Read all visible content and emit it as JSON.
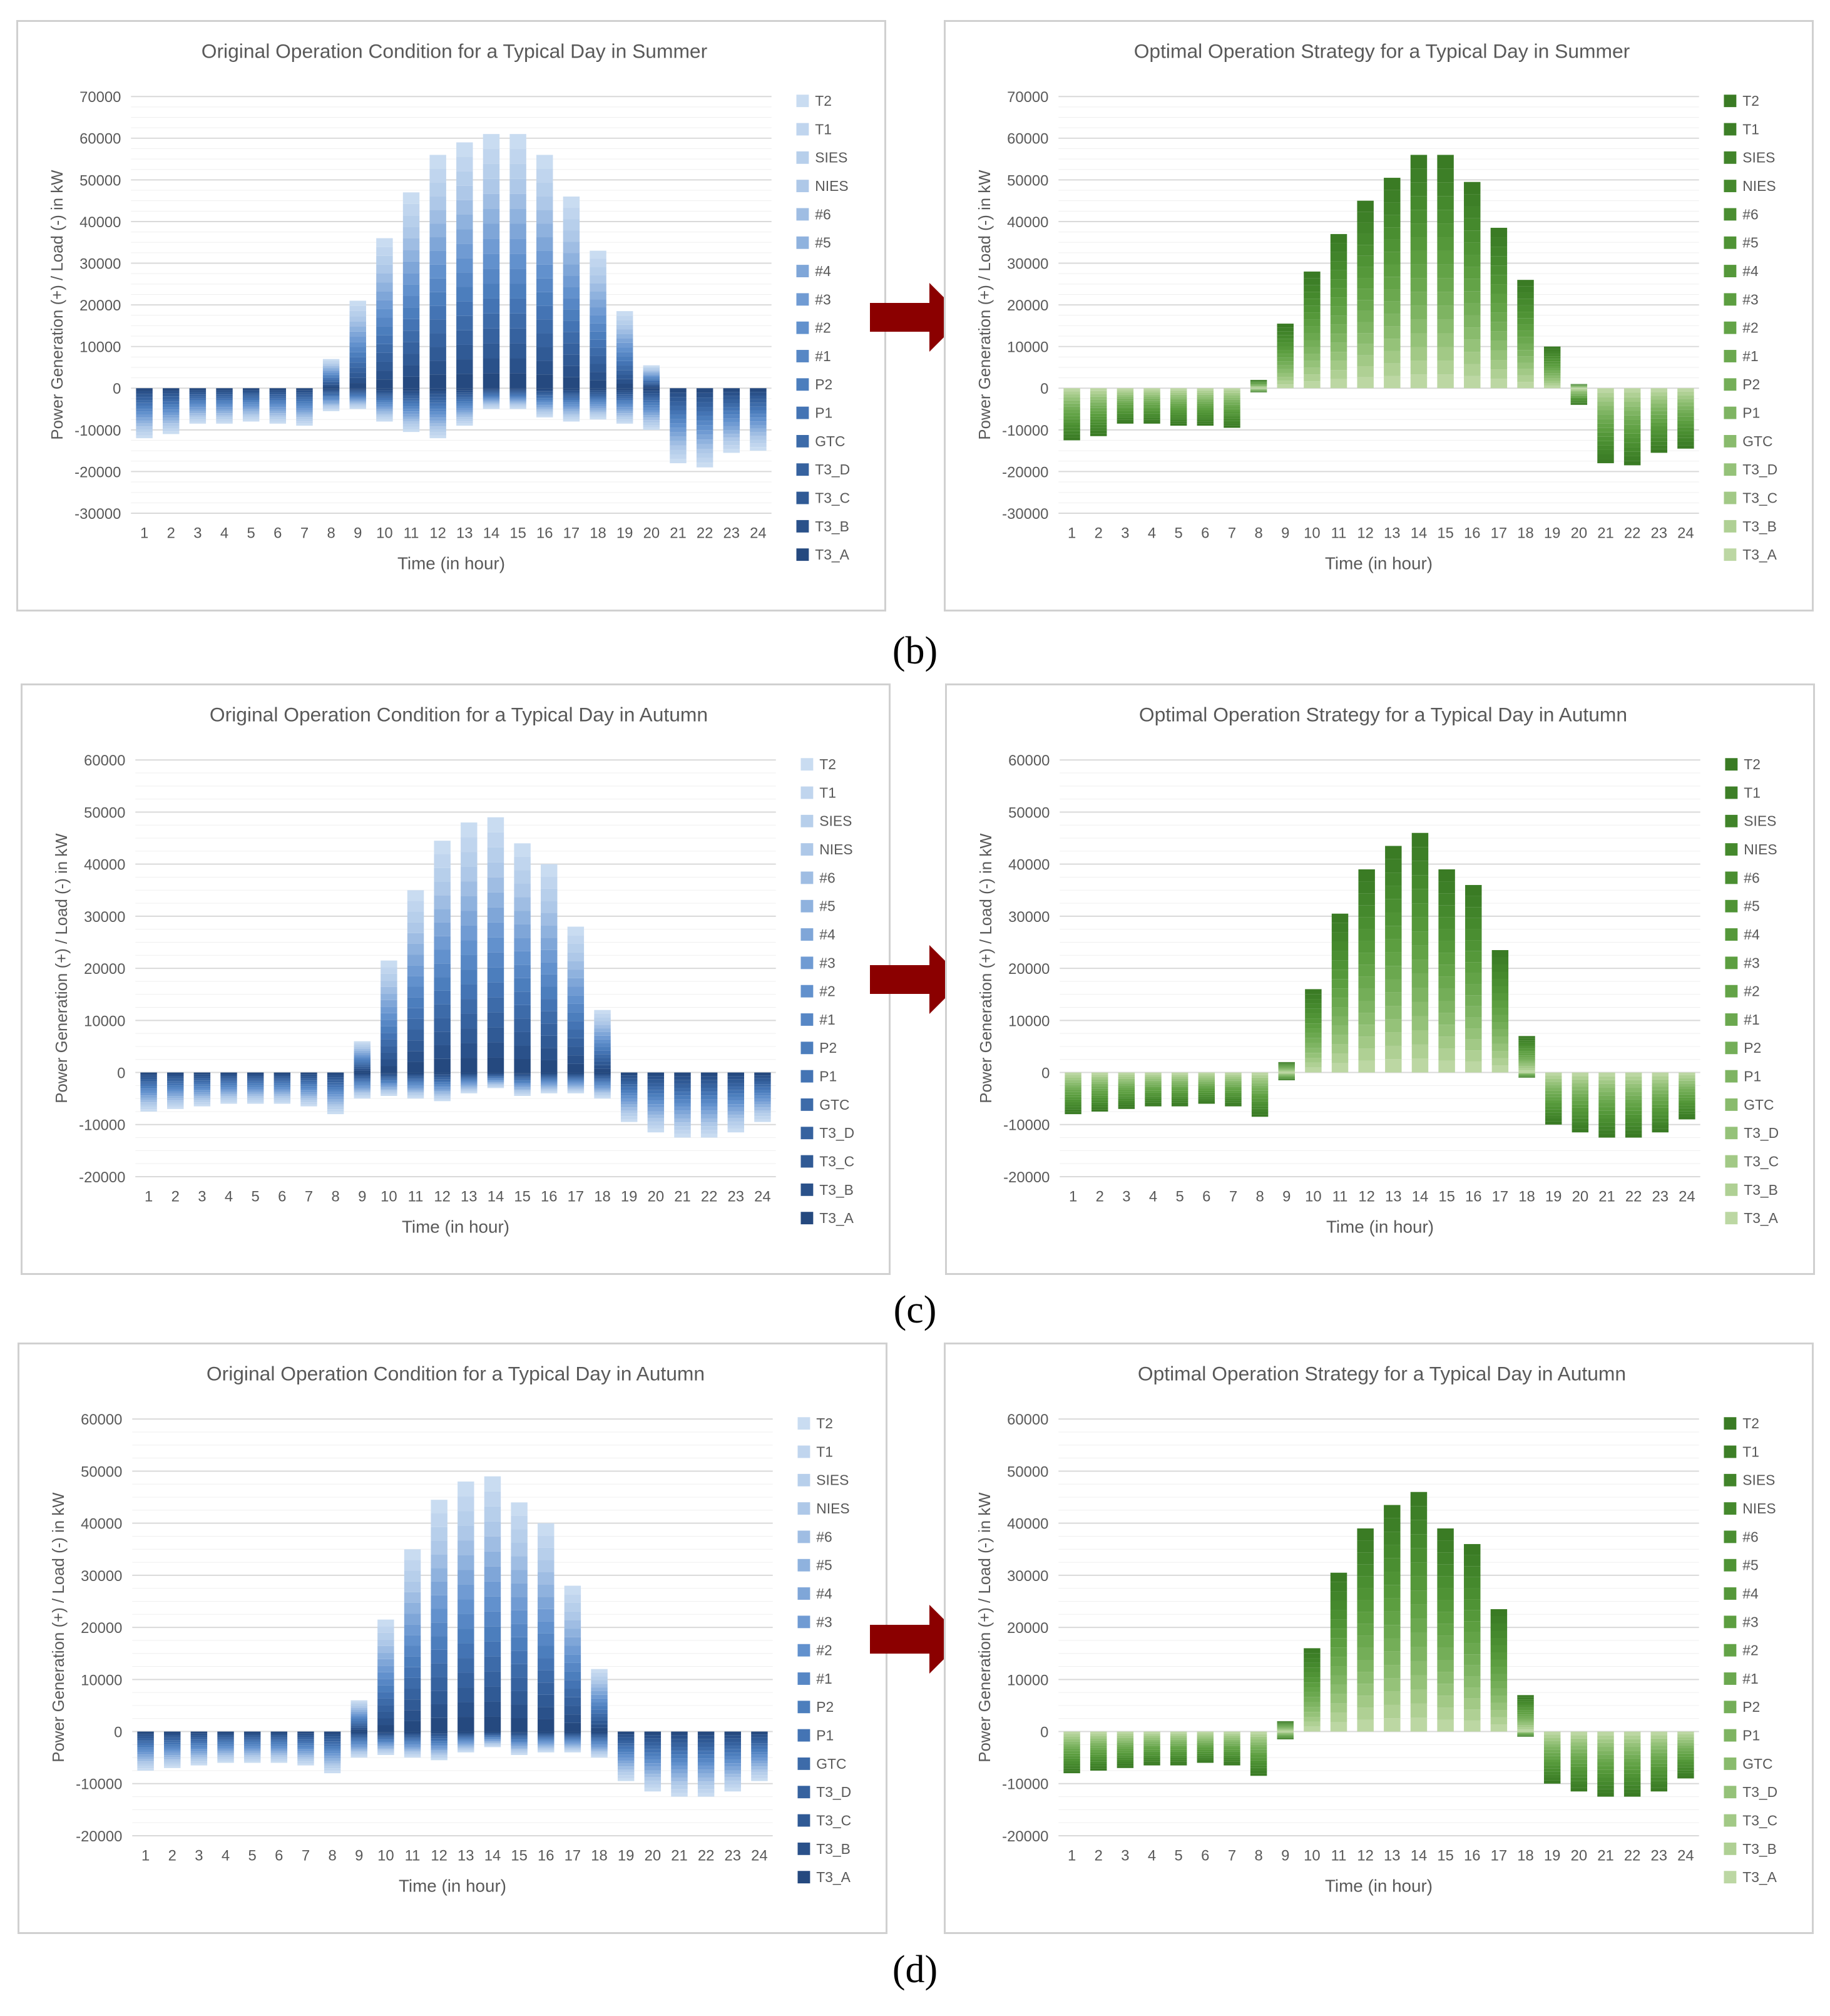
{
  "palettes": {
    "blue": [
      "#c9dcf1",
      "#c0d5ee",
      "#b7cfeb",
      "#aec8e8",
      "#9fbde3",
      "#8fb2de",
      "#7fa6d8",
      "#709bd3",
      "#6291cd",
      "#5787c5",
      "#4c7ebd",
      "#4474b4",
      "#3d6ba9",
      "#36629f",
      "#305a95",
      "#2a518a",
      "#25497f"
    ],
    "green": [
      "#3a7b24",
      "#3d7f27",
      "#41842a",
      "#45892d",
      "#4a8e31",
      "#4f9335",
      "#55983a",
      "#5c9e40",
      "#63a347",
      "#6ba84f",
      "#74ae58",
      "#7eb462",
      "#89bb6d",
      "#95c279",
      "#a2c986",
      "#afd094",
      "#bcd7a3"
    ]
  },
  "series_names": [
    "T2",
    "T1",
    "SIES",
    "NIES",
    "#6",
    "#5",
    "#4",
    "#3",
    "#2",
    "#1",
    "P2",
    "P1",
    "GTC",
    "T3_D",
    "T3_C",
    "T3_B",
    "T3_A"
  ],
  "arrow_color": "#8b0000",
  "row_labels": [
    "(b)",
    "(c)",
    "(d)"
  ],
  "charts": [
    {
      "title": "Original Operation Condition for a Typical Day in Summer",
      "xlabel": "Time (in hour)",
      "ylabel": "Power Generation (+) / Load (-) in kW",
      "ylim": [
        -30000,
        70000
      ],
      "ytick": 10000,
      "palette": "blue",
      "chart_data": {
        "type": "bar",
        "stacked": true,
        "categories": [
          "1",
          "2",
          "3",
          "4",
          "5",
          "6",
          "7",
          "8",
          "9",
          "10",
          "11",
          "12",
          "13",
          "14",
          "15",
          "16",
          "17",
          "18",
          "19",
          "20",
          "21",
          "22",
          "23",
          "24"
        ],
        "positive_total": [
          0,
          0,
          0,
          0,
          0,
          0,
          0,
          7000,
          21000,
          36000,
          47000,
          56000,
          59000,
          61000,
          61000,
          56000,
          46000,
          33000,
          18500,
          5500,
          0,
          0,
          0,
          0
        ],
        "negative_total": [
          -12000,
          -11000,
          -8500,
          -8500,
          -8000,
          -8500,
          -9000,
          -5500,
          -5000,
          -8000,
          -10500,
          -12000,
          -9000,
          -5000,
          -5000,
          -7000,
          -8000,
          -7500,
          -8500,
          -10000,
          -18000,
          -19000,
          -15500,
          -15000
        ]
      }
    },
    {
      "title": "Optimal Operation Strategy for a Typical Day in Summer",
      "xlabel": "Time (in hour)",
      "ylabel": "Power Generation (+) / Load (-) in kW",
      "ylim": [
        -30000,
        70000
      ],
      "ytick": 10000,
      "palette": "green",
      "chart_data": {
        "type": "bar",
        "stacked": true,
        "categories": [
          "1",
          "2",
          "3",
          "4",
          "5",
          "6",
          "7",
          "8",
          "9",
          "10",
          "11",
          "12",
          "13",
          "14",
          "15",
          "16",
          "17",
          "18",
          "19",
          "20",
          "21",
          "22",
          "23",
          "24"
        ],
        "positive_total": [
          0,
          0,
          0,
          0,
          0,
          0,
          0,
          2000,
          15500,
          28000,
          37000,
          45000,
          50500,
          56000,
          56000,
          49500,
          38500,
          26000,
          10000,
          1000,
          0,
          0,
          0,
          0
        ],
        "negative_total": [
          -12500,
          -11500,
          -8500,
          -8500,
          -9000,
          -9000,
          -9500,
          -1000,
          0,
          0,
          0,
          0,
          0,
          0,
          0,
          0,
          0,
          0,
          0,
          -4000,
          -18000,
          -18500,
          -15500,
          -14500
        ]
      }
    },
    {
      "title": "Original Operation Condition for a Typical Day in Autumn",
      "xlabel": "Time (in hour)",
      "ylabel": "Power Generation (+) / Load (-) in kW",
      "ylim": [
        -20000,
        60000
      ],
      "ytick": 10000,
      "palette": "blue",
      "chart_data": {
        "type": "bar",
        "stacked": true,
        "categories": [
          "1",
          "2",
          "3",
          "4",
          "5",
          "6",
          "7",
          "8",
          "9",
          "10",
          "11",
          "12",
          "13",
          "14",
          "15",
          "16",
          "17",
          "18",
          "19",
          "20",
          "21",
          "22",
          "23",
          "24"
        ],
        "positive_total": [
          0,
          0,
          0,
          0,
          0,
          0,
          0,
          0,
          6000,
          21500,
          35000,
          44500,
          48000,
          49000,
          44000,
          40000,
          28000,
          12000,
          0,
          0,
          0,
          0,
          0,
          0
        ],
        "negative_total": [
          -7500,
          -7000,
          -6500,
          -6000,
          -6000,
          -6000,
          -6500,
          -8000,
          -5000,
          -4500,
          -5000,
          -5500,
          -4000,
          -3000,
          -4500,
          -4000,
          -4000,
          -5000,
          -9500,
          -11500,
          -12500,
          -12500,
          -11500,
          -9500
        ]
      }
    },
    {
      "title": "Optimal Operation Strategy for a Typical Day in Autumn",
      "xlabel": "Time (in hour)",
      "ylabel": "Power Generation (+) / Load (-) in kW",
      "ylim": [
        -20000,
        60000
      ],
      "ytick": 10000,
      "palette": "green",
      "chart_data": {
        "type": "bar",
        "stacked": true,
        "categories": [
          "1",
          "2",
          "3",
          "4",
          "5",
          "6",
          "7",
          "8",
          "9",
          "10",
          "11",
          "12",
          "13",
          "14",
          "15",
          "16",
          "17",
          "18",
          "19",
          "20",
          "21",
          "22",
          "23",
          "24"
        ],
        "positive_total": [
          0,
          0,
          0,
          0,
          0,
          0,
          0,
          0,
          2000,
          16000,
          30500,
          39000,
          43500,
          46000,
          39000,
          36000,
          23500,
          7000,
          0,
          0,
          0,
          0,
          0,
          0
        ],
        "negative_total": [
          -8000,
          -7500,
          -7000,
          -6500,
          -6500,
          -6000,
          -6500,
          -8500,
          -1500,
          0,
          0,
          0,
          0,
          0,
          0,
          0,
          0,
          -1000,
          -10000,
          -11500,
          -12500,
          -12500,
          -11500,
          -9000
        ]
      }
    },
    {
      "title": "Original Operation Condition for a Typical Day in Autumn",
      "xlabel": "Time (in hour)",
      "ylabel": "Power Generation (+) / Load (-) in kW",
      "ylim": [
        -20000,
        60000
      ],
      "ytick": 10000,
      "palette": "blue",
      "chart_data": {
        "type": "bar",
        "stacked": true,
        "categories": [
          "1",
          "2",
          "3",
          "4",
          "5",
          "6",
          "7",
          "8",
          "9",
          "10",
          "11",
          "12",
          "13",
          "14",
          "15",
          "16",
          "17",
          "18",
          "19",
          "20",
          "21",
          "22",
          "23",
          "24"
        ],
        "positive_total": [
          0,
          0,
          0,
          0,
          0,
          0,
          0,
          0,
          6000,
          21500,
          35000,
          44500,
          48000,
          49000,
          44000,
          40000,
          28000,
          12000,
          0,
          0,
          0,
          0,
          0,
          0
        ],
        "negative_total": [
          -7500,
          -7000,
          -6500,
          -6000,
          -6000,
          -6000,
          -6500,
          -8000,
          -5000,
          -4500,
          -5000,
          -5500,
          -4000,
          -3000,
          -4500,
          -4000,
          -4000,
          -5000,
          -9500,
          -11500,
          -12500,
          -12500,
          -11500,
          -9500
        ]
      }
    },
    {
      "title": "Optimal Operation Strategy for a Typical Day in Autumn",
      "xlabel": "Time (in hour)",
      "ylabel": "Power Generation (+) / Load (-) in kW",
      "ylim": [
        -20000,
        60000
      ],
      "ytick": 10000,
      "palette": "green",
      "chart_data": {
        "type": "bar",
        "stacked": true,
        "categories": [
          "1",
          "2",
          "3",
          "4",
          "5",
          "6",
          "7",
          "8",
          "9",
          "10",
          "11",
          "12",
          "13",
          "14",
          "15",
          "16",
          "17",
          "18",
          "19",
          "20",
          "21",
          "22",
          "23",
          "24"
        ],
        "positive_total": [
          0,
          0,
          0,
          0,
          0,
          0,
          0,
          0,
          2000,
          16000,
          30500,
          39000,
          43500,
          46000,
          39000,
          36000,
          23500,
          7000,
          0,
          0,
          0,
          0,
          0,
          0
        ],
        "negative_total": [
          -8000,
          -7500,
          -7000,
          -6500,
          -6500,
          -6000,
          -6500,
          -8500,
          -1500,
          0,
          0,
          0,
          0,
          0,
          0,
          0,
          0,
          -1000,
          -10000,
          -11500,
          -12500,
          -12500,
          -11500,
          -9000
        ]
      }
    }
  ]
}
